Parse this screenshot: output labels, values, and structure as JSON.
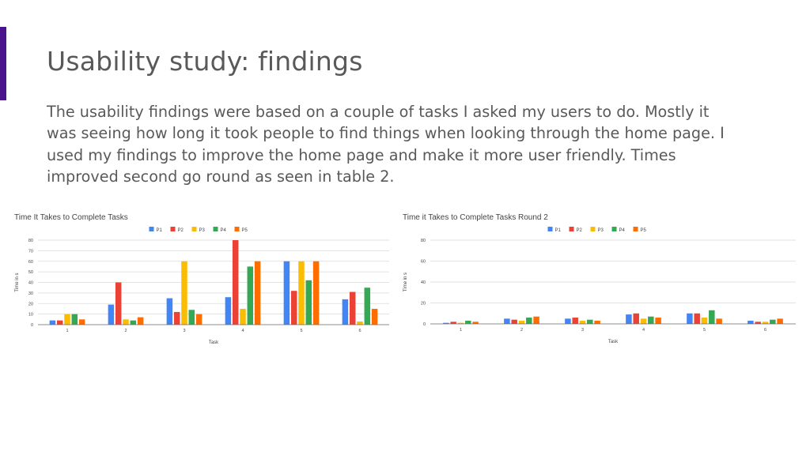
{
  "slide": {
    "title": "Usability study: findings",
    "body": "The usability findings were based on a couple of tasks I asked my users to do. Mostly it was seeing how long it took people to find things when looking through the home page. I used my findings to improve the home page and make it more user friendly. Times improved second go round as seen in table 2.",
    "accent_color": "#4a148c"
  },
  "chart_data": [
    {
      "type": "bar",
      "title": "Time It Takes to Complete Tasks",
      "xlabel": "Task",
      "ylabel": "Time in s",
      "categories": [
        "1",
        "2",
        "3",
        "4",
        "5",
        "6"
      ],
      "ylim": [
        0,
        80
      ],
      "yticks": [
        0,
        10,
        20,
        30,
        40,
        50,
        60,
        70,
        80
      ],
      "grid": true,
      "legend_position": "top",
      "series": [
        {
          "name": "P1",
          "color": "#4285f4",
          "values": [
            4,
            19,
            25,
            26,
            60,
            24
          ]
        },
        {
          "name": "P2",
          "color": "#ea4335",
          "values": [
            4,
            40,
            12,
            80,
            32,
            31
          ]
        },
        {
          "name": "P3",
          "color": "#fbbc04",
          "values": [
            10,
            5,
            60,
            15,
            60,
            3
          ]
        },
        {
          "name": "P4",
          "color": "#34a853",
          "values": [
            10,
            4,
            14,
            55,
            42,
            35
          ]
        },
        {
          "name": "P5",
          "color": "#ff6d01",
          "values": [
            5,
            7,
            10,
            60,
            60,
            15
          ]
        }
      ]
    },
    {
      "type": "bar",
      "title": "Time it Takes to Complete Tasks Round 2",
      "xlabel": "Task",
      "ylabel": "Time in s",
      "categories": [
        "1",
        "2",
        "3",
        "4",
        "5",
        "6"
      ],
      "ylim": [
        0,
        80
      ],
      "yticks": [
        0,
        20,
        40,
        60,
        80
      ],
      "grid": true,
      "legend_position": "top",
      "series": [
        {
          "name": "P1",
          "color": "#4285f4",
          "values": [
            1,
            5,
            5,
            9,
            10,
            3
          ]
        },
        {
          "name": "P2",
          "color": "#ea4335",
          "values": [
            2,
            4,
            6,
            10,
            10,
            2
          ]
        },
        {
          "name": "P3",
          "color": "#fbbc04",
          "values": [
            1,
            3,
            3,
            5,
            6,
            2
          ]
        },
        {
          "name": "P4",
          "color": "#34a853",
          "values": [
            3,
            6,
            4,
            7,
            13,
            4
          ]
        },
        {
          "name": "P5",
          "color": "#ff6d01",
          "values": [
            2,
            7,
            3,
            6,
            5,
            5
          ]
        }
      ]
    }
  ]
}
